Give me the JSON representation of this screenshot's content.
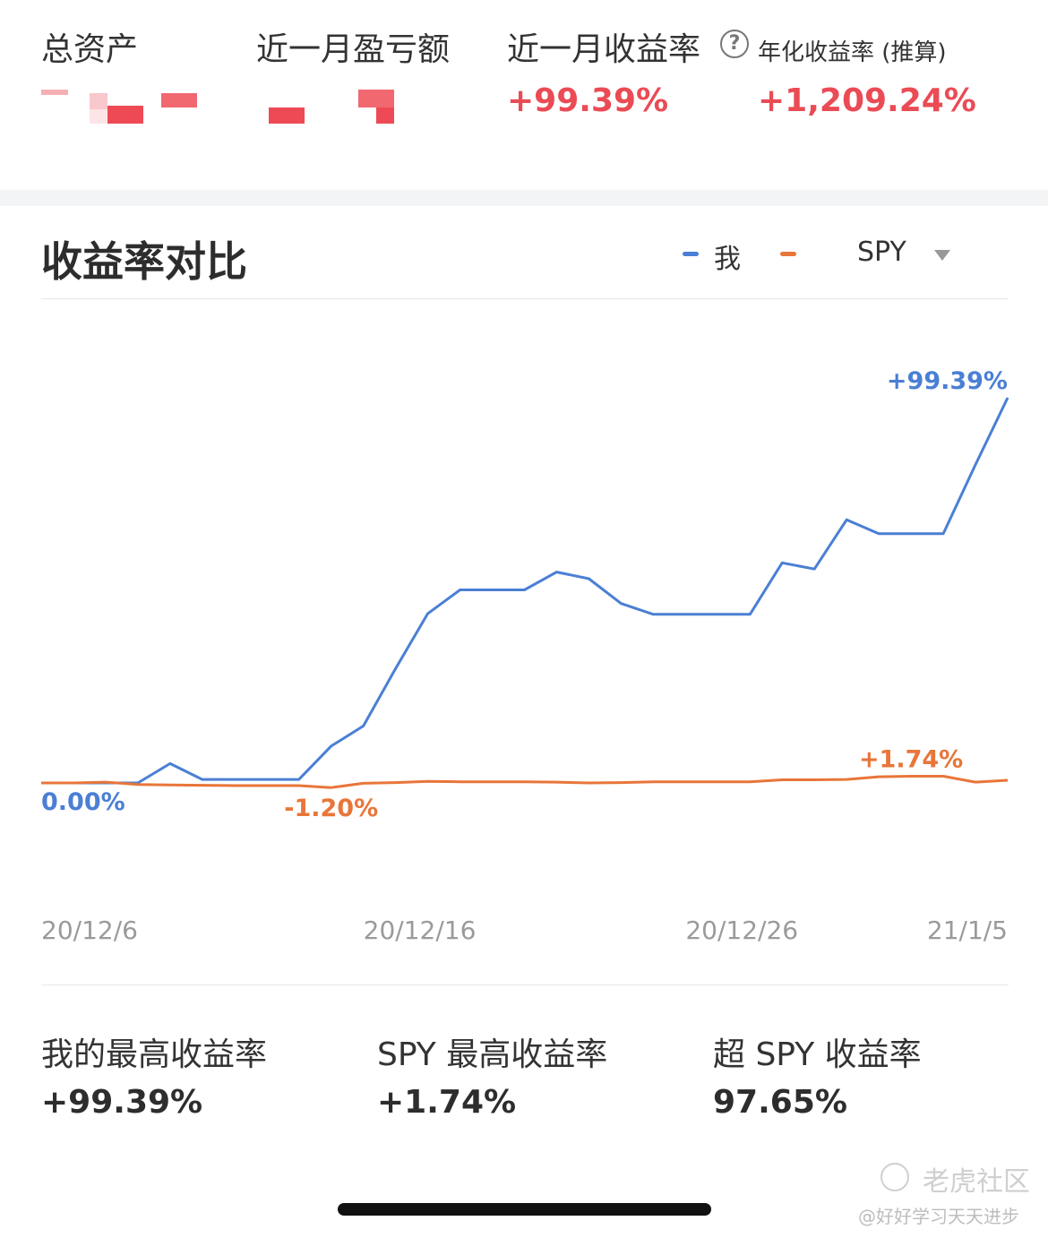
{
  "summary": {
    "total_assets_label": "总资产",
    "month_pnl_label": "近一月盈亏额",
    "month_return_label": "近一月收益率",
    "month_return_value": "+99.39%",
    "help_icon": "?",
    "annualized_label": "年化收益率 (推算)",
    "annualized_value": "+1,209.24%"
  },
  "comparison": {
    "title": "收益率对比",
    "legend_me": "我",
    "legend_spy": "SPY",
    "legend_caret_icon": "caret-down-icon"
  },
  "colors": {
    "me": "#4a7fd4",
    "spy": "#e8763a",
    "positive": "#ea4b55"
  },
  "chart_data": {
    "type": "line",
    "x": [
      "20/12/6",
      "20/12/7",
      "20/12/8",
      "20/12/9",
      "20/12/10",
      "20/12/11",
      "20/12/12",
      "20/12/13",
      "20/12/14",
      "20/12/15",
      "20/12/16",
      "20/12/17",
      "20/12/18",
      "20/12/19",
      "20/12/20",
      "20/12/21",
      "20/12/22",
      "20/12/23",
      "20/12/24",
      "20/12/25",
      "20/12/26",
      "20/12/27",
      "20/12/28",
      "20/12/29",
      "20/12/30",
      "20/12/31",
      "21/1/1",
      "21/1/2",
      "21/1/3",
      "21/1/4",
      "21/1/5"
    ],
    "xticks": [
      "20/12/6",
      "20/12/16",
      "20/12/26",
      "21/1/5"
    ],
    "series": [
      {
        "name": "我",
        "values": [
          0,
          0,
          0,
          0,
          5,
          0.9,
          0.9,
          0.9,
          0.9,
          9.5,
          14.7,
          29.5,
          43.7,
          49.8,
          49.8,
          49.8,
          54.4,
          52.7,
          46.3,
          43.5,
          43.5,
          43.5,
          43.5,
          56.8,
          55.2,
          67.9,
          64.3,
          64.3,
          64.3,
          82.1,
          99.39
        ]
      },
      {
        "name": "SPY",
        "values": [
          0,
          0,
          0.2,
          -0.4,
          -0.5,
          -0.6,
          -0.7,
          -0.7,
          -0.7,
          -1.2,
          -0.1,
          0.1,
          0.4,
          0.3,
          0.3,
          0.3,
          0.2,
          0,
          0.1,
          0.3,
          0.3,
          0.3,
          0.3,
          0.8,
          0.8,
          0.9,
          1.6,
          1.74,
          1.74,
          0.2,
          0.7
        ]
      }
    ],
    "annotations": {
      "start": "0.00%",
      "spy_min": "-1.20%",
      "spy_max": "+1.74%",
      "me_end": "+99.39%"
    },
    "ylim": [
      -8,
      104
    ],
    "legend": "top-right",
    "grid": false
  },
  "stats": {
    "my_max_label": "我的最高收益率",
    "my_max_value": "+99.39%",
    "spy_max_label": "SPY 最高收益率",
    "spy_max_value": "+1.74%",
    "excess_label": "超 SPY 收益率",
    "excess_value": "97.65%"
  },
  "watermark": {
    "brand": "老虎社区",
    "user": "@好好学习天天进步"
  }
}
